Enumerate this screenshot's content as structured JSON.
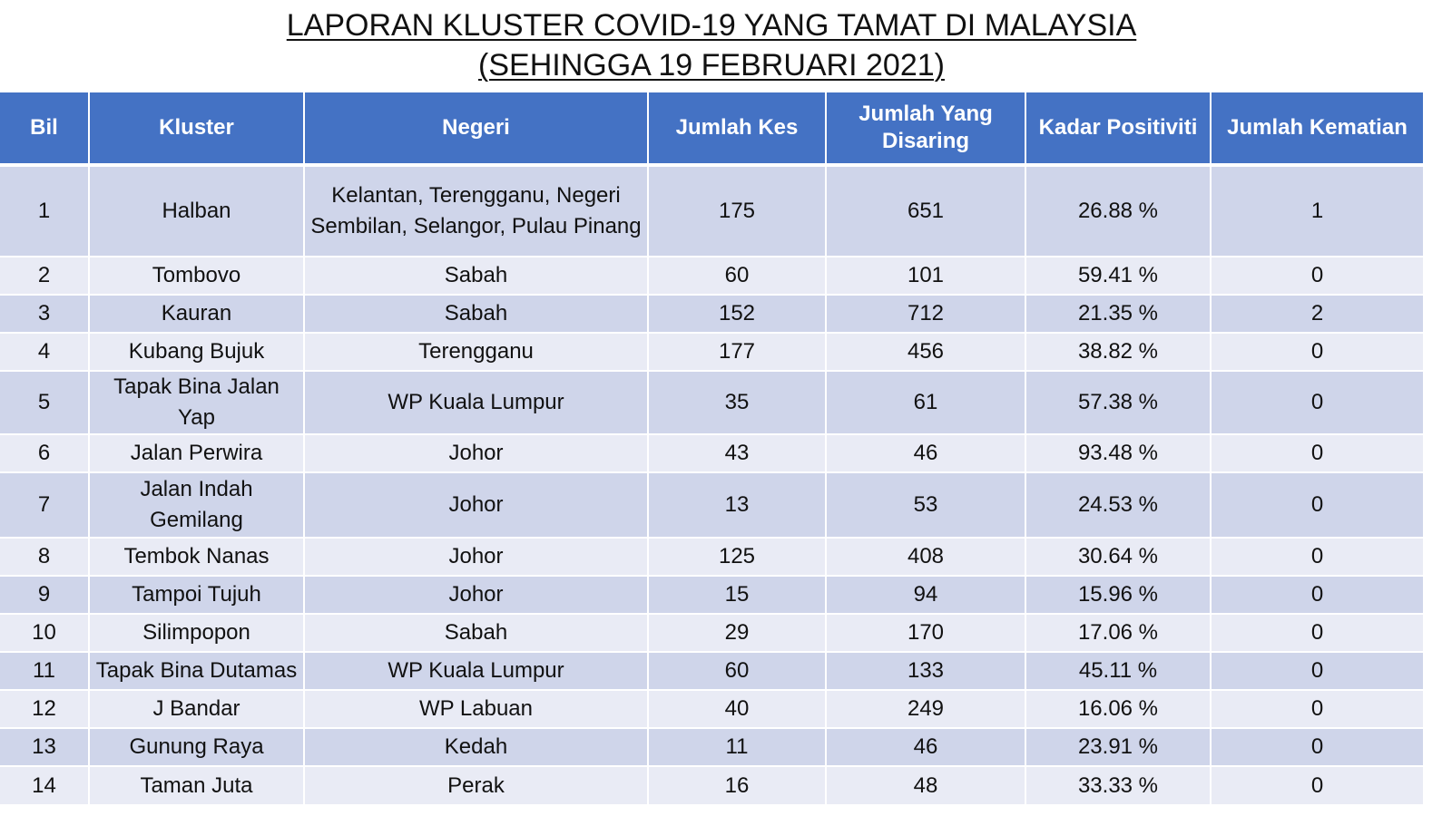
{
  "title": {
    "line1": "LAPORAN KLUSTER COVID-19 YANG TAMAT DI MALAYSIA",
    "line2": "(SEHINGGA  19 FEBRUARI 2021)"
  },
  "table": {
    "headers": {
      "bil": "Bil",
      "kluster": "Kluster",
      "negeri": "Negeri",
      "jumlah_kes": "Jumlah Kes",
      "jumlah_disaring": "Jumlah Yang Disaring",
      "kadar_positiviti": "Kadar Positiviti",
      "jumlah_kematian": "Jumlah Kematian"
    },
    "rows": [
      {
        "bil": "1",
        "kluster": "Halban",
        "negeri": "Kelantan, Terengganu, Negeri Sembilan, Selangor, Pulau Pinang",
        "kes": "175",
        "disaring": "651",
        "positiviti": "26.88 %",
        "kematian": "1"
      },
      {
        "bil": "2",
        "kluster": "Tombovo",
        "negeri": "Sabah",
        "kes": "60",
        "disaring": "101",
        "positiviti": "59.41 %",
        "kematian": "0"
      },
      {
        "bil": "3",
        "kluster": "Kauran",
        "negeri": "Sabah",
        "kes": "152",
        "disaring": "712",
        "positiviti": "21.35 %",
        "kematian": "2"
      },
      {
        "bil": "4",
        "kluster": "Kubang Bujuk",
        "negeri": "Terengganu",
        "kes": "177",
        "disaring": "456",
        "positiviti": "38.82 %",
        "kematian": "0"
      },
      {
        "bil": "5",
        "kluster": "Tapak Bina Jalan Yap",
        "negeri": "WP Kuala Lumpur",
        "kes": "35",
        "disaring": "61",
        "positiviti": "57.38 %",
        "kematian": "0"
      },
      {
        "bil": "6",
        "kluster": "Jalan Perwira",
        "negeri": "Johor",
        "kes": "43",
        "disaring": "46",
        "positiviti": "93.48 %",
        "kematian": "0"
      },
      {
        "bil": "7",
        "kluster": "Jalan Indah Gemilang",
        "negeri": "Johor",
        "kes": "13",
        "disaring": "53",
        "positiviti": "24.53 %",
        "kematian": "0"
      },
      {
        "bil": "8",
        "kluster": "Tembok Nanas",
        "negeri": "Johor",
        "kes": "125",
        "disaring": "408",
        "positiviti": "30.64 %",
        "kematian": "0"
      },
      {
        "bil": "9",
        "kluster": "Tampoi Tujuh",
        "negeri": "Johor",
        "kes": "15",
        "disaring": "94",
        "positiviti": "15.96 %",
        "kematian": "0"
      },
      {
        "bil": "10",
        "kluster": "Silimpopon",
        "negeri": "Sabah",
        "kes": "29",
        "disaring": "170",
        "positiviti": "17.06 %",
        "kematian": "0"
      },
      {
        "bil": "11",
        "kluster": "Tapak Bina Dutamas",
        "negeri": "WP Kuala Lumpur",
        "kes": "60",
        "disaring": "133",
        "positiviti": "45.11 %",
        "kematian": "0"
      },
      {
        "bil": "12",
        "kluster": "J Bandar",
        "negeri": "WP Labuan",
        "kes": "40",
        "disaring": "249",
        "positiviti": "16.06 %",
        "kematian": "0"
      },
      {
        "bil": "13",
        "kluster": "Gunung Raya",
        "negeri": "Kedah",
        "kes": "11",
        "disaring": "46",
        "positiviti": "23.91 %",
        "kematian": "0"
      },
      {
        "bil": "14",
        "kluster": "Taman Juta",
        "negeri": "Perak",
        "kes": "16",
        "disaring": "48",
        "positiviti": "33.33 %",
        "kematian": "0"
      }
    ]
  }
}
